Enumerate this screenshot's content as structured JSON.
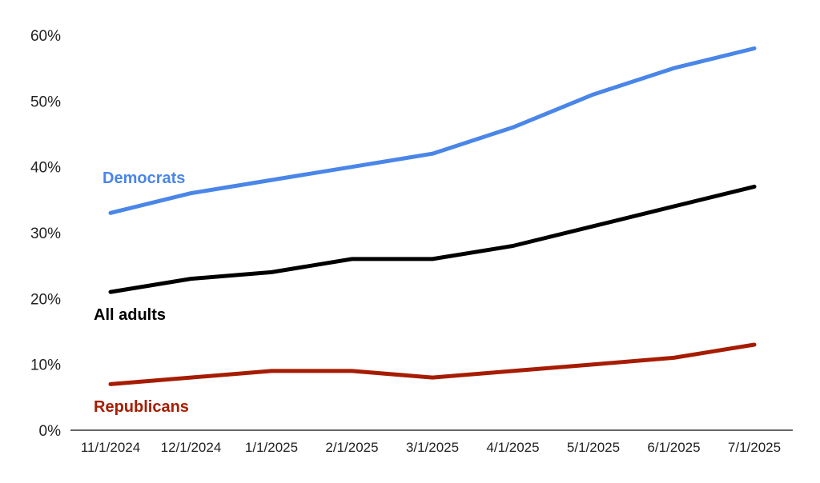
{
  "chart_data": {
    "type": "line",
    "title": "",
    "xlabel": "",
    "ylabel": "",
    "x": [
      "11/1/2024",
      "12/1/2024",
      "1/1/2025",
      "2/1/2025",
      "3/1/2025",
      "4/1/2025",
      "5/1/2025",
      "6/1/2025",
      "7/1/2025"
    ],
    "ylim": [
      0,
      60
    ],
    "yticks": [
      0,
      10,
      20,
      30,
      40,
      50,
      60
    ],
    "ytick_labels": [
      "0%",
      "10%",
      "20%",
      "30%",
      "40%",
      "50%",
      "60%"
    ],
    "grid": false,
    "legend": "inline labels",
    "series": [
      {
        "name": "Democrats",
        "color": "#4a86e8",
        "values": [
          33,
          36,
          38,
          40,
          42,
          46,
          51,
          55,
          58
        ]
      },
      {
        "name": "All adults",
        "color": "#000000",
        "values": [
          21,
          23,
          24,
          26,
          26,
          28,
          31,
          34,
          37
        ]
      },
      {
        "name": "Republicans",
        "color": "#a61c00",
        "values": [
          7,
          8,
          9,
          9,
          8,
          9,
          10,
          11,
          13
        ]
      }
    ]
  }
}
